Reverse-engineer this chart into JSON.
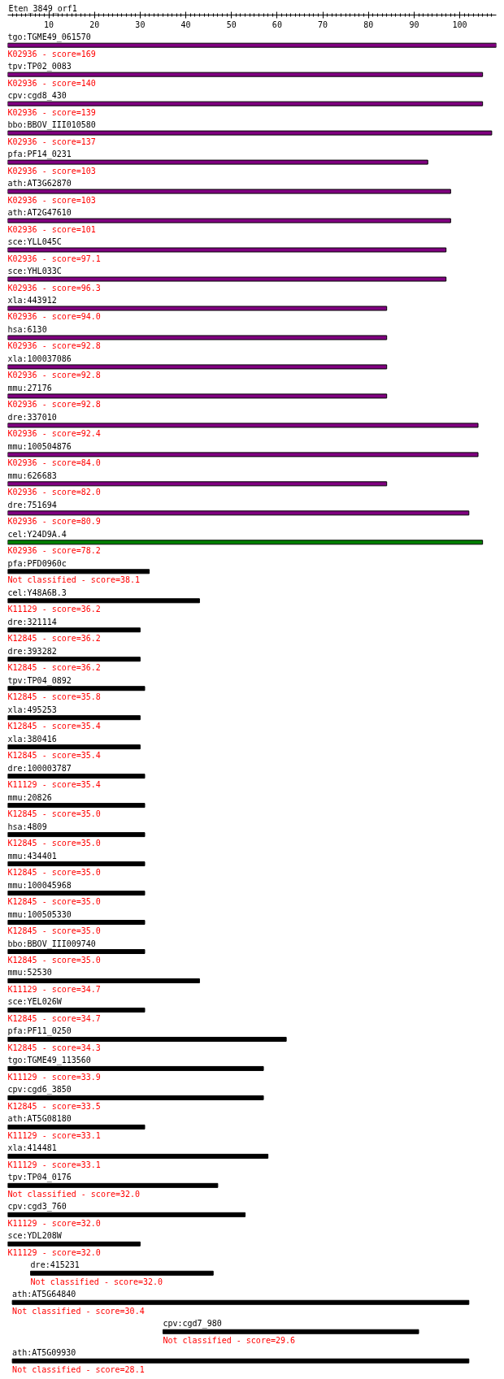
{
  "chart_data": {
    "type": "bar",
    "orientation": "horizontal",
    "title": "Eten_3849_orf1",
    "categories": [
      "tgo:TGME49_061570",
      "tpv:TP02_0083",
      "cpv:cgd8_430",
      "bbo:BBOV_III010580",
      "pfa:PF14_0231",
      "ath:AT3G62870",
      "ath:AT2G47610",
      "sce:YLL045C",
      "sce:YHL033C",
      "xla:443912",
      "hsa:6130",
      "xla:100037086",
      "mmu:27176",
      "dre:337010",
      "mmu:100504876",
      "mmu:626683",
      "dre:751694",
      "cel:Y24D9A.4",
      "pfa:PFD0960c",
      "cel:Y48A6B.3",
      "dre:321114",
      "dre:393282",
      "tpv:TP04_0892",
      "xla:495253",
      "xla:380416",
      "dre:100003787",
      "mmu:20826",
      "hsa:4809",
      "mmu:434401",
      "mmu:100045968",
      "mmu:100505330",
      "bbo:BBOV_III009740",
      "mmu:52530",
      "sce:YEL026W",
      "pfa:PF11_0250",
      "tgo:TGME49_113560",
      "cpv:cgd6_3850",
      "ath:AT5G08180",
      "xla:414481",
      "tpv:TP04_0176",
      "cpv:cgd3_760",
      "sce:YDL208W",
      "dre:415231",
      "ath:AT5G64840",
      "cpv:cgd7_980",
      "ath:AT5G09930"
    ],
    "base": [
      1,
      1,
      1,
      1,
      1,
      1,
      1,
      1,
      1,
      1,
      1,
      1,
      1,
      1,
      1,
      1,
      1,
      1,
      1,
      1,
      1,
      1,
      1,
      1,
      1,
      1,
      1,
      1,
      1,
      1,
      1,
      1,
      1,
      1,
      1,
      1,
      1,
      1,
      1,
      1,
      1,
      1,
      6,
      2,
      35,
      2
    ],
    "values": [
      107,
      104,
      104,
      106,
      92,
      97,
      97,
      96,
      96,
      83,
      83,
      83,
      83,
      103,
      103,
      83,
      101,
      104,
      31,
      42,
      29,
      29,
      30,
      29,
      29,
      30,
      30,
      30,
      30,
      30,
      30,
      30,
      42,
      30,
      61,
      56,
      56,
      30,
      57,
      46,
      52,
      29,
      40,
      100,
      56,
      100
    ],
    "colors": [
      "#800080",
      "#800080",
      "#800080",
      "#800080",
      "#800080",
      "#800080",
      "#800080",
      "#800080",
      "#800080",
      "#800080",
      "#800080",
      "#800080",
      "#800080",
      "#800080",
      "#800080",
      "#800080",
      "#800080",
      "#008000",
      "#000000",
      "#000000",
      "#000000",
      "#000000",
      "#000000",
      "#000000",
      "#000000",
      "#000000",
      "#000000",
      "#000000",
      "#000000",
      "#000000",
      "#000000",
      "#000000",
      "#000000",
      "#000000",
      "#000000",
      "#000000",
      "#000000",
      "#000000",
      "#000000",
      "#000000",
      "#000000",
      "#000000",
      "#000000",
      "#000000",
      "#000000",
      "#000000"
    ],
    "xlim": [
      1,
      108
    ],
    "xticks": [
      10,
      20,
      30,
      40,
      50,
      60,
      70,
      80,
      90,
      100,
      {
        "value": 2,
        "label": null
      },
      {
        "value": 3,
        "label": null
      },
      {
        "value": 4,
        "label": null
      },
      {
        "value": 5,
        "label": null
      },
      {
        "value": 6,
        "label": null
      },
      {
        "value": 7,
        "label": null
      },
      {
        "value": 8,
        "label": null
      },
      {
        "value": 9,
        "label": null
      },
      {
        "value": 11,
        "label": null
      },
      {
        "value": 12,
        "label": null
      },
      {
        "value": 13,
        "label": null
      },
      {
        "value": 14,
        "label": null
      },
      {
        "value": 15,
        "label": null
      },
      {
        "value": 16,
        "label": null
      },
      {
        "value": 17,
        "label": null
      },
      {
        "value": 18,
        "label": null
      },
      {
        "value": 19,
        "label": null
      },
      {
        "value": 21,
        "label": null
      },
      {
        "value": 22,
        "label": null
      },
      {
        "value": 23,
        "label": null
      },
      {
        "value": 24,
        "label": null
      },
      {
        "value": 25,
        "label": null
      },
      {
        "value": 26,
        "label": null
      },
      {
        "value": 27,
        "label": null
      },
      {
        "value": 28,
        "label": null
      },
      {
        "value": 29,
        "label": null
      },
      {
        "value": 31,
        "label": null
      },
      {
        "value": 32,
        "label": null
      },
      {
        "value": 33,
        "label": null
      },
      {
        "value": 34,
        "label": null
      },
      {
        "value": 35,
        "label": null
      },
      {
        "value": 36,
        "label": null
      },
      {
        "value": 37,
        "label": null
      },
      {
        "value": 38,
        "label": null
      },
      {
        "value": 39,
        "label": null
      },
      {
        "value": 41,
        "label": null
      },
      {
        "value": 42,
        "label": null
      },
      {
        "value": 43,
        "label": null
      },
      {
        "value": 44,
        "label": null
      },
      {
        "value": 45,
        "label": null
      },
      {
        "value": 46,
        "label": null
      },
      {
        "value": 47,
        "label": null
      },
      {
        "value": 48,
        "label": null
      },
      {
        "value": 49,
        "label": null
      },
      {
        "value": 51,
        "label": null
      },
      {
        "value": 52,
        "label": null
      },
      {
        "value": 53,
        "label": null
      },
      {
        "value": 54,
        "label": null
      },
      {
        "value": 55,
        "label": null
      },
      {
        "value": 56,
        "label": null
      },
      {
        "value": 57,
        "label": null
      },
      {
        "value": 58,
        "label": null
      },
      {
        "value": 59,
        "label": null
      },
      {
        "value": 61,
        "label": null
      },
      {
        "value": 62,
        "label": null
      },
      {
        "value": 63,
        "label": null
      },
      {
        "value": 64,
        "label": null
      },
      {
        "value": 65,
        "label": null
      },
      {
        "value": 66,
        "label": null
      },
      {
        "value": 67,
        "label": null
      },
      {
        "value": 68,
        "label": null
      },
      {
        "value": 69,
        "label": null
      },
      {
        "value": 71,
        "label": null
      },
      {
        "value": 72,
        "label": null
      },
      {
        "value": 73,
        "label": null
      },
      {
        "value": 74,
        "label": null
      },
      {
        "value": 75,
        "label": null
      },
      {
        "value": 76,
        "label": null
      },
      {
        "value": 77,
        "label": null
      },
      {
        "value": 78,
        "label": null
      },
      {
        "value": 79,
        "label": null
      },
      {
        "value": 81,
        "label": null
      },
      {
        "value": 82,
        "label": null
      },
      {
        "value": 83,
        "label": null
      },
      {
        "value": 84,
        "label": null
      },
      {
        "value": 85,
        "label": null
      },
      {
        "value": 86,
        "label": null
      },
      {
        "value": 87,
        "label": null
      },
      {
        "value": 88,
        "label": null
      },
      {
        "value": 89,
        "label": null
      },
      {
        "value": 91,
        "label": null
      },
      {
        "value": 92,
        "label": null
      },
      {
        "value": 93,
        "label": null
      },
      {
        "value": 94,
        "label": null
      },
      {
        "value": 95,
        "label": null
      },
      {
        "value": 96,
        "label": null
      },
      {
        "value": 97,
        "label": null
      },
      {
        "value": 98,
        "label": null
      },
      {
        "value": 99,
        "label": null
      },
      {
        "value": 101,
        "label": null
      },
      {
        "value": 102,
        "label": null
      },
      {
        "value": 103,
        "label": null
      },
      {
        "value": 104,
        "label": null
      },
      {
        "value": 105,
        "label": null
      },
      {
        "value": 106,
        "label": null
      },
      {
        "value": 107,
        "label": null
      }
    ],
    "annotations": [
      "K02936 - score=169",
      "K02936 - score=140",
      "K02936 - score=139",
      "K02936 - score=137",
      "K02936 - score=103",
      "K02936 - score=103",
      "K02936 - score=101",
      "K02936 - score=97.1",
      "K02936 - score=96.3",
      "K02936 - score=94.0",
      "K02936 - score=92.8",
      "K02936 - score=92.8",
      "K02936 - score=92.8",
      "K02936 - score=92.4",
      "K02936 - score=84.0",
      "K02936 - score=82.0",
      "K02936 - score=80.9",
      "K02936 - score=78.2",
      "Not classified - score=38.1",
      "K11129 - score=36.2",
      "K12845 - score=36.2",
      "K12845 - score=36.2",
      "K12845 - score=35.8",
      "K12845 - score=35.4",
      "K12845 - score=35.4",
      "K11129 - score=35.4",
      "K12845 - score=35.0",
      "K12845 - score=35.0",
      "K12845 - score=35.0",
      "K12845 - score=35.0",
      "K12845 - score=35.0",
      "K12845 - score=35.0",
      "K11129 - score=34.7",
      "K12845 - score=34.7",
      "K12845 - score=34.3",
      "K11129 - score=33.9",
      "K12845 - score=33.5",
      "K11129 - score=33.1",
      "K11129 - score=33.1",
      "Not classified - score=32.0",
      "K11129 - score=32.0",
      "K11129 - score=32.0",
      "Not classified - score=32.0",
      "Not classified - score=30.4",
      "Not classified - score=29.6",
      "Not classified - score=28.1"
    ]
  }
}
